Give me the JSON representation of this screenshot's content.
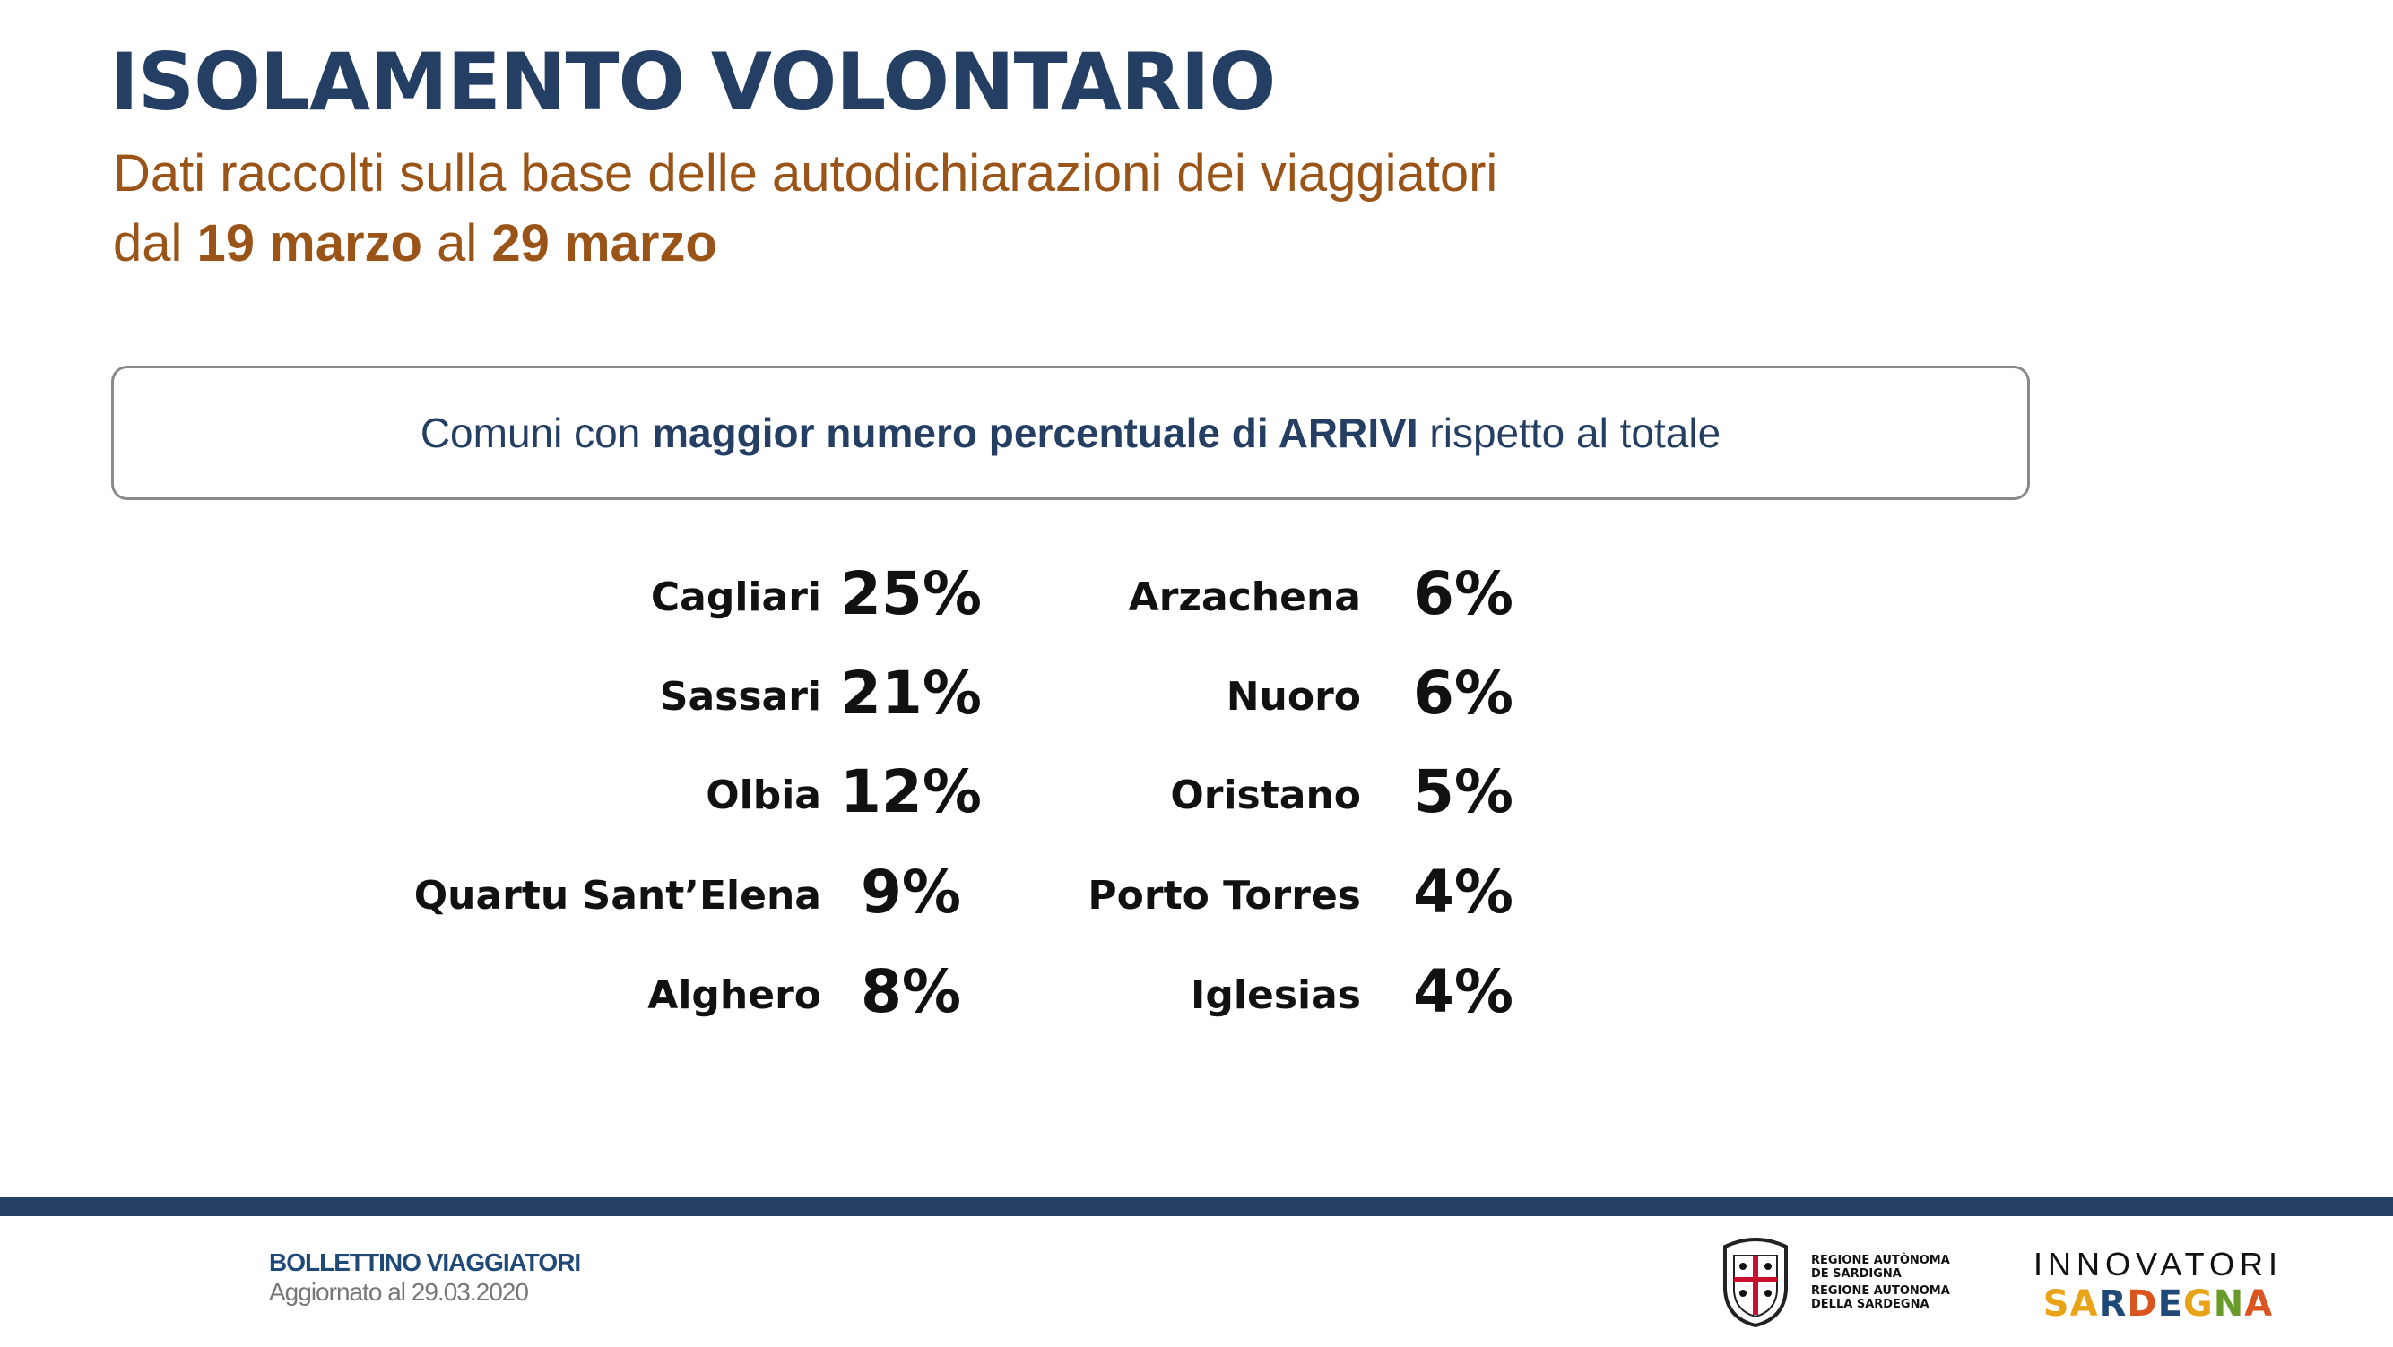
{
  "header": {
    "title": "ISOLAMENTO VOLONTARIO",
    "subtitle_line1": "Dati raccolti sulla base delle autodichiarazioni dei viaggiatori",
    "subtitle_prefix": "dal ",
    "date_from": "19 marzo",
    "subtitle_mid": " al ",
    "date_to": "29 marzo"
  },
  "box": {
    "pre": "Comuni con ",
    "bold": "maggior numero percentuale di ARRIVI",
    "post": " rispetto al totale"
  },
  "left": [
    {
      "name": "Cagliari",
      "pct": "25%"
    },
    {
      "name": "Sassari",
      "pct": "21%"
    },
    {
      "name": "Olbia",
      "pct": "12%"
    },
    {
      "name": "Quartu Sant’Elena",
      "pct": "9%"
    },
    {
      "name": "Alghero",
      "pct": "8%"
    }
  ],
  "right": [
    {
      "name": "Arzachena",
      "pct": "6%"
    },
    {
      "name": "Nuoro",
      "pct": "6%"
    },
    {
      "name": "Oristano",
      "pct": "5%"
    },
    {
      "name": "Porto Torres",
      "pct": "4%"
    },
    {
      "name": "Iglesias",
      "pct": "4%"
    }
  ],
  "footer": {
    "title": "BOLLETTINO VIAGGIATORI",
    "updated": "Aggiornato al 29.03.2020",
    "region_l1": "REGIONE AUTÒNOMA",
    "region_l2": "DE SARDIGNA",
    "region_l3": "REGIONE AUTONOMA",
    "region_l4": "DELLA SARDEGNA",
    "brand_top": "INNOVATORI",
    "brand_bottom": "SARDEGNA"
  },
  "colors": {
    "navy": "#243f63",
    "brown": "#9a5418"
  }
}
